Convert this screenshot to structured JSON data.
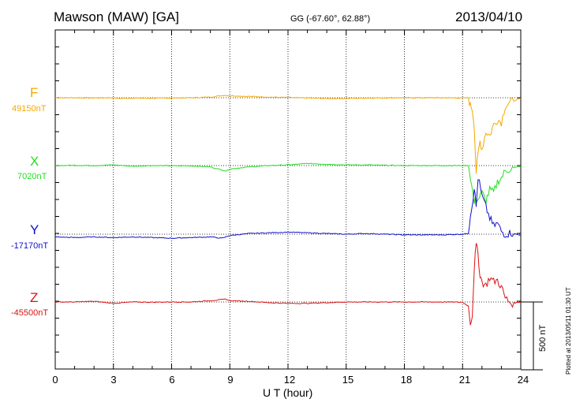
{
  "header": {
    "station": "Mawson (MAW)  [GA]",
    "coords": "GG (-67.60°,  62.88°)",
    "date": "2013/04/10"
  },
  "plotted_note": "Plotted at 2013/05/11 01:30 UT",
  "colors": {
    "F": "#f5a800",
    "X": "#22dd22",
    "Y": "#1010cc",
    "Z": "#dd1111"
  },
  "chart_data": {
    "type": "line",
    "xlabel": "U T (hour)",
    "x_ticks": [
      "0",
      "3",
      "6",
      "9",
      "12",
      "15",
      "18",
      "21",
      "24"
    ],
    "xlim": [
      0,
      24
    ],
    "scale_bar": {
      "value": 500,
      "label": "500 nT"
    },
    "series": [
      {
        "name": "F",
        "baseline_label": "49150nT",
        "baseline": 49150,
        "points": [
          [
            0,
            0
          ],
          [
            1,
            0
          ],
          [
            2,
            -1
          ],
          [
            3,
            0
          ],
          [
            3.2,
            -5
          ],
          [
            4,
            -2
          ],
          [
            5,
            -4
          ],
          [
            6,
            -2
          ],
          [
            7,
            0
          ],
          [
            8,
            5
          ],
          [
            8.7,
            18
          ],
          [
            9,
            15
          ],
          [
            10,
            10
          ],
          [
            11,
            5
          ],
          [
            12,
            2
          ],
          [
            13,
            -2
          ],
          [
            14,
            -6
          ],
          [
            15,
            -5
          ],
          [
            16,
            -2
          ],
          [
            17,
            -1
          ],
          [
            18,
            0
          ],
          [
            19,
            0
          ],
          [
            20,
            0
          ],
          [
            21,
            -2
          ],
          [
            21.3,
            0
          ],
          [
            21.4,
            -60
          ],
          [
            21.5,
            -80
          ],
          [
            21.6,
            -200
          ],
          [
            21.7,
            -550
          ],
          [
            21.8,
            -420
          ],
          [
            21.9,
            -320
          ],
          [
            22,
            -380
          ],
          [
            22.2,
            -250
          ],
          [
            22.4,
            -280
          ],
          [
            22.6,
            -200
          ],
          [
            22.8,
            -160
          ],
          [
            23,
            -180
          ],
          [
            23.2,
            -60
          ],
          [
            23.5,
            -30
          ],
          [
            24,
            -5
          ]
        ]
      },
      {
        "name": "X",
        "baseline_label": "7020nT",
        "baseline": 7020,
        "points": [
          [
            0,
            0
          ],
          [
            1,
            2
          ],
          [
            2,
            0
          ],
          [
            3,
            5
          ],
          [
            4,
            -5
          ],
          [
            5,
            0
          ],
          [
            6,
            -2
          ],
          [
            7,
            -2
          ],
          [
            8,
            -10
          ],
          [
            8.8,
            -40
          ],
          [
            9,
            -25
          ],
          [
            10,
            -10
          ],
          [
            11,
            0
          ],
          [
            12,
            5
          ],
          [
            13,
            15
          ],
          [
            14,
            10
          ],
          [
            15,
            5
          ],
          [
            16,
            5
          ],
          [
            17,
            2
          ],
          [
            18,
            0
          ],
          [
            19,
            0
          ],
          [
            20,
            0
          ],
          [
            21,
            0
          ],
          [
            21.3,
            0
          ],
          [
            21.4,
            -80
          ],
          [
            21.6,
            -280
          ],
          [
            21.7,
            -240
          ],
          [
            21.8,
            -250
          ],
          [
            22,
            -200
          ],
          [
            22.2,
            -260
          ],
          [
            22.4,
            -180
          ],
          [
            22.6,
            -200
          ],
          [
            22.8,
            -120
          ],
          [
            23,
            -90
          ],
          [
            23.2,
            -40
          ],
          [
            23.5,
            -20
          ],
          [
            24,
            -5
          ]
        ]
      },
      {
        "name": "Y",
        "baseline_label": "-17170nT",
        "baseline": -17170,
        "points": [
          [
            0,
            -20
          ],
          [
            1,
            -25
          ],
          [
            2,
            -20
          ],
          [
            3,
            -25
          ],
          [
            4,
            -20
          ],
          [
            5,
            -25
          ],
          [
            6,
            -30
          ],
          [
            7,
            -25
          ],
          [
            8,
            -20
          ],
          [
            8.6,
            -30
          ],
          [
            9,
            -10
          ],
          [
            10,
            5
          ],
          [
            11,
            10
          ],
          [
            12,
            15
          ],
          [
            13,
            10
          ],
          [
            14,
            5
          ],
          [
            15,
            0
          ],
          [
            16,
            5
          ],
          [
            17,
            0
          ],
          [
            18,
            -5
          ],
          [
            19,
            -5
          ],
          [
            20,
            -5
          ],
          [
            21,
            0
          ],
          [
            21.3,
            5
          ],
          [
            21.4,
            150
          ],
          [
            21.5,
            220
          ],
          [
            21.6,
            350
          ],
          [
            21.7,
            200
          ],
          [
            21.8,
            420
          ],
          [
            22,
            280
          ],
          [
            22.2,
            200
          ],
          [
            22.4,
            120
          ],
          [
            22.6,
            60
          ],
          [
            22.8,
            80
          ],
          [
            23,
            20
          ],
          [
            23.2,
            0
          ],
          [
            23.5,
            10
          ],
          [
            24,
            -10
          ]
        ]
      },
      {
        "name": "Z",
        "baseline_label": "-45500nT",
        "baseline": -45500,
        "points": [
          [
            0,
            0
          ],
          [
            1,
            0
          ],
          [
            2,
            5
          ],
          [
            3,
            -10
          ],
          [
            4,
            0
          ],
          [
            5,
            -2
          ],
          [
            6,
            0
          ],
          [
            7,
            0
          ],
          [
            8,
            10
          ],
          [
            8.8,
            20
          ],
          [
            9,
            10
          ],
          [
            10,
            5
          ],
          [
            11,
            -5
          ],
          [
            12,
            -10
          ],
          [
            13,
            -10
          ],
          [
            14,
            -5
          ],
          [
            15,
            0
          ],
          [
            16,
            0
          ],
          [
            17,
            0
          ],
          [
            18,
            0
          ],
          [
            19,
            0
          ],
          [
            20,
            0
          ],
          [
            21,
            -2
          ],
          [
            21.3,
            -30
          ],
          [
            21.4,
            -150
          ],
          [
            21.5,
            -100
          ],
          [
            21.6,
            250
          ],
          [
            21.7,
            420
          ],
          [
            21.8,
            350
          ],
          [
            21.9,
            200
          ],
          [
            22,
            150
          ],
          [
            22.2,
            120
          ],
          [
            22.4,
            180
          ],
          [
            22.6,
            150
          ],
          [
            22.8,
            160
          ],
          [
            23,
            110
          ],
          [
            23.2,
            30
          ],
          [
            23.5,
            -10
          ],
          [
            24,
            0
          ]
        ]
      }
    ]
  }
}
